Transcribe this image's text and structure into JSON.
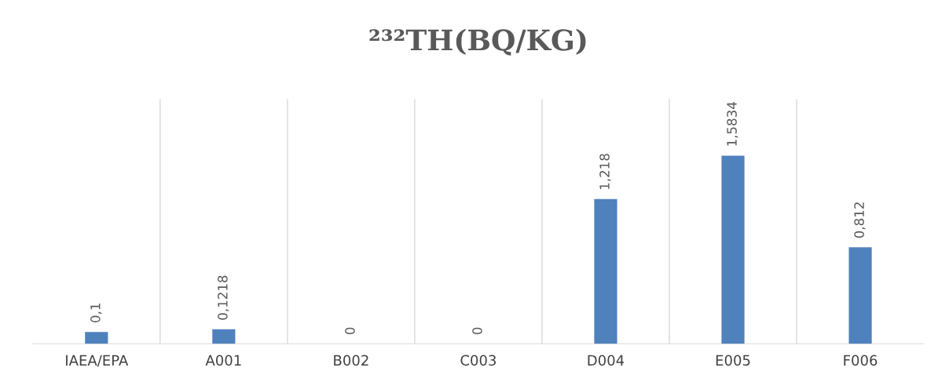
{
  "chart_data": {
    "type": "bar",
    "title": "²³²TH(BQ/KG)",
    "categories": [
      "IAEA/EPA",
      "A001",
      "B002",
      "C003",
      "D004",
      "E005",
      "F006"
    ],
    "values": [
      0.1,
      0.1218,
      0,
      0,
      1.218,
      1.5834,
      0.812
    ],
    "value_labels": [
      "0,1",
      "0,1218",
      "0",
      "0",
      "1,218",
      "1,5834",
      "0,812"
    ],
    "color": "#4f81bd",
    "grid": "x",
    "tick_labels": "x",
    "legend": false
  }
}
